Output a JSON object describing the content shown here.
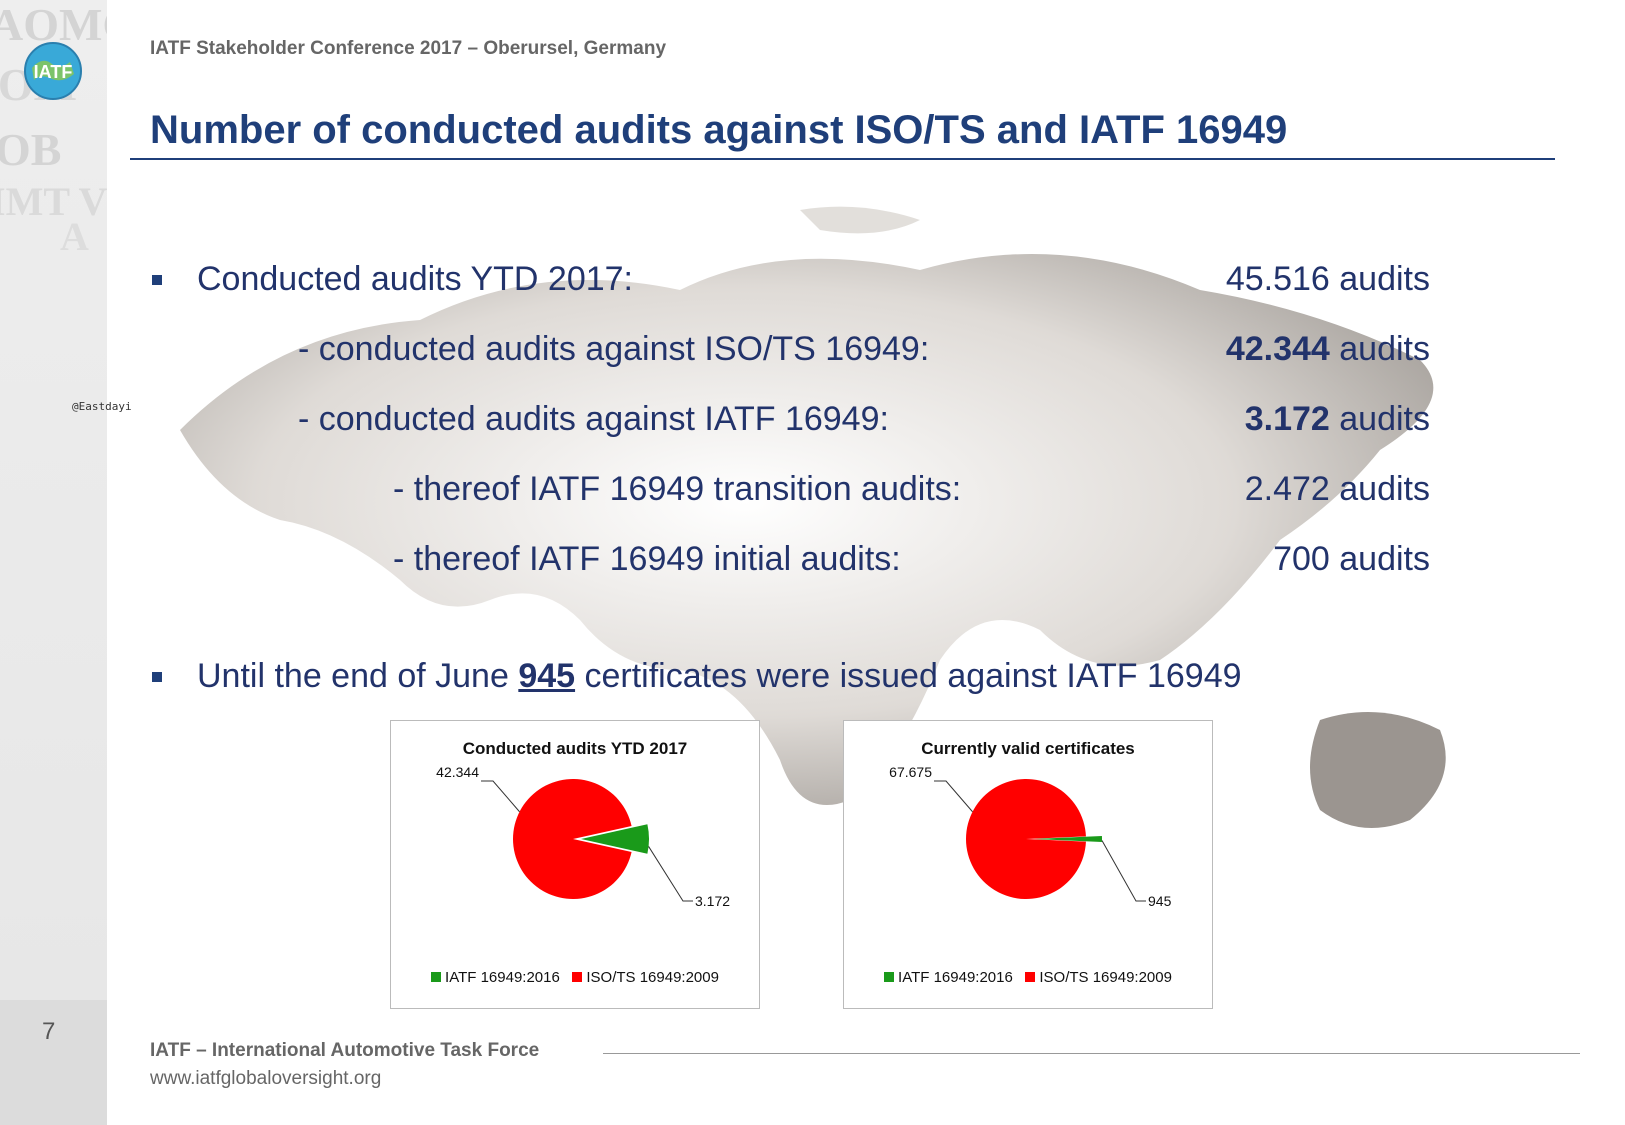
{
  "header": {
    "conference": "IATF Stakeholder Conference 2017 – Oberursel, Germany",
    "title": "Number of conducted audits against ISO/TS and IATF 16949"
  },
  "sidebar": {
    "page_number": "7",
    "watermark": "@Eastdayi",
    "logo_text": "IATF"
  },
  "rows": [
    {
      "label": "Conducted audits YTD 2017:",
      "value_num": "45.516",
      "value_unit": " audits",
      "bold": false
    },
    {
      "label": "- conducted audits against ISO/TS 16949:",
      "value_num": "42.344",
      "value_unit": " audits",
      "bold": true
    },
    {
      "label": "- conducted audits against IATF 16949:",
      "value_num": "3.172",
      "value_unit": " audits",
      "bold": true
    },
    {
      "label": "- thereof IATF 16949 transition audits:",
      "value_num": "2.472",
      "value_unit": " audits",
      "bold": false
    },
    {
      "label": "- thereof IATF 16949 initial audits:",
      "value_num": "700",
      "value_unit": " audits",
      "bold": false
    }
  ],
  "statement": {
    "before": "Until the end of June ",
    "number": "945",
    "after": " certificates were issued against IATF 16949"
  },
  "colors": {
    "red": "#ff0000",
    "green": "#1a9a1a",
    "title_blue": "#1f3f7a",
    "text_blue": "#22336b"
  },
  "chart_data": [
    {
      "type": "pie",
      "title": "Conducted audits YTD 2017",
      "labels": [
        "IATF 16949:2016",
        "ISO/TS 16949:2009"
      ],
      "values": [
        3172,
        42344
      ],
      "data_labels": [
        "3.172",
        "42.344"
      ],
      "colors": [
        "#1a9a1a",
        "#ff0000"
      ],
      "legend": "bottom"
    },
    {
      "type": "pie",
      "title": "Currently valid certificates",
      "labels": [
        "IATF 16949:2016",
        "ISO/TS 16949:2009"
      ],
      "values": [
        945,
        67675
      ],
      "data_labels": [
        "945",
        "67.675"
      ],
      "colors": [
        "#1a9a1a",
        "#ff0000"
      ],
      "legend": "bottom"
    }
  ],
  "footer": {
    "org": "IATF – International Automotive Task Force",
    "url": "www.iatfglobaloversight.org"
  }
}
